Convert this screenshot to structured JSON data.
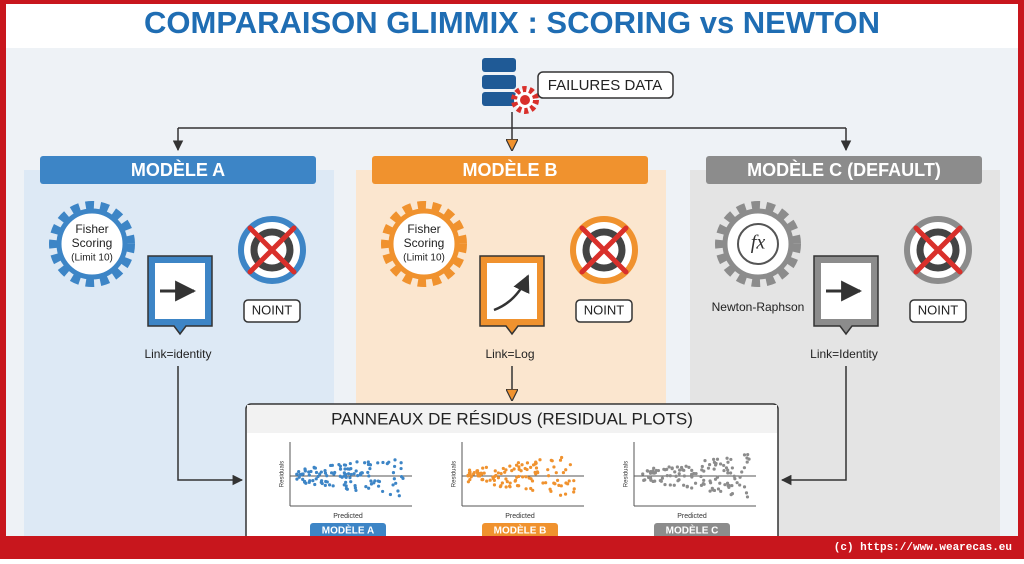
{
  "title": "COMPARAISON GLIMMIX : SCORING vs NEWTON",
  "source": {
    "label": "FAILURES DATA"
  },
  "models": [
    {
      "header": "MODÈLE A",
      "method_lines": [
        "Fisher",
        "Scoring",
        "(Limit 10)"
      ],
      "option": "NOINT",
      "link": "Link=identity"
    },
    {
      "header": "MODÈLE B",
      "method_lines": [
        "Fisher",
        "Scoring",
        "(Limit 10)"
      ],
      "option": "NOINT",
      "link": "Link=Log"
    },
    {
      "header": "MODÈLE C (DEFAULT)",
      "method_icon": "fx",
      "method_label": "Newton-Raphson",
      "option": "NOINT",
      "link": "Link=Identity"
    }
  ],
  "panel": {
    "title": "PANNEAUX DE RÉSIDUS (RESIDUAL PLOTS)",
    "plots": [
      {
        "y_label": "Residuals",
        "x_label": "Predicted",
        "tag": "MODÈLE A"
      },
      {
        "y_label": "Residuals",
        "x_label": "Predicted",
        "tag": "MODÈLE B"
      },
      {
        "y_label": "Residuals",
        "x_label": "Predicted",
        "tag": "MODÈLE C"
      }
    ]
  },
  "footer": "(c) https://www.wearecas.eu"
}
